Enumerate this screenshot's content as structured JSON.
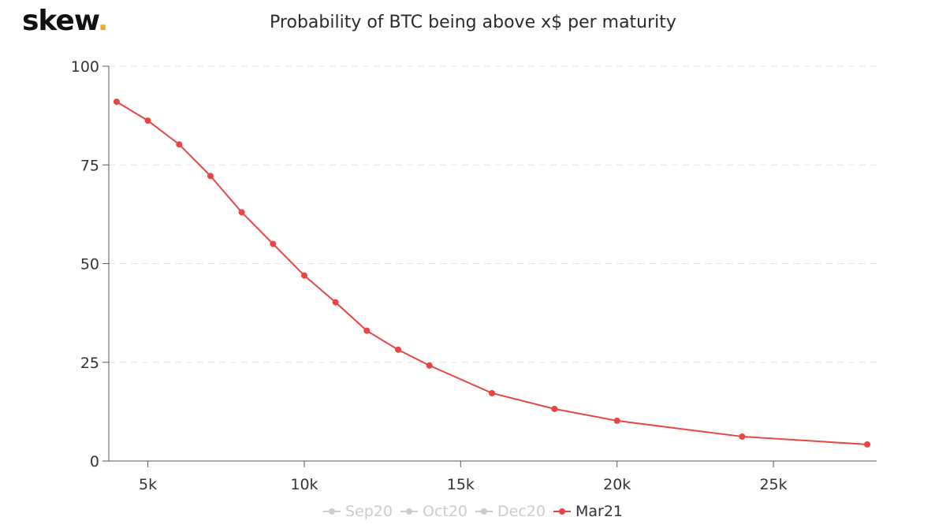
{
  "logo": {
    "text": "skew",
    "dot": "."
  },
  "chart_data": {
    "type": "line",
    "title": "Probability of BTC being above x$ per maturity",
    "xlabel": "",
    "ylabel": "",
    "xlim": [
      3750,
      28300
    ],
    "ylim": [
      0,
      100
    ],
    "x_ticks": [
      5000,
      10000,
      15000,
      20000,
      25000
    ],
    "x_tick_labels": [
      "5k",
      "10k",
      "15k",
      "20k",
      "25k"
    ],
    "y_ticks": [
      0,
      25,
      50,
      75,
      100
    ],
    "y_tick_labels": [
      "0",
      "25",
      "50",
      "75",
      "100"
    ],
    "grid": "horizontal dashed",
    "legend_position": "bottom",
    "series": [
      {
        "name": "Sep20",
        "color": "#cccccc",
        "visible": false,
        "x": [],
        "y": []
      },
      {
        "name": "Oct20",
        "color": "#cccccc",
        "visible": false,
        "x": [],
        "y": []
      },
      {
        "name": "Dec20",
        "color": "#cccccc",
        "visible": false,
        "x": [],
        "y": []
      },
      {
        "name": "Mar21",
        "color": "#e84545",
        "visible": true,
        "x": [
          4000,
          5000,
          6000,
          7000,
          8000,
          9000,
          10000,
          11000,
          12000,
          13000,
          14000,
          16000,
          18000,
          20000,
          24000,
          28000
        ],
        "y": [
          91,
          86.2,
          80.2,
          72.2,
          63,
          55,
          47,
          40.2,
          33,
          28.2,
          24.2,
          17.2,
          13.2,
          10.2,
          6.2,
          4.2
        ]
      }
    ]
  }
}
